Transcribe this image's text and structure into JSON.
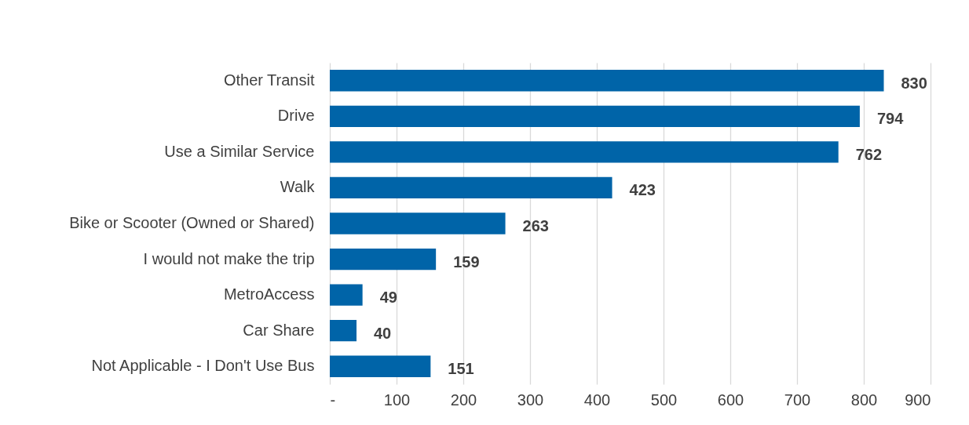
{
  "chart_data": {
    "type": "bar",
    "orientation": "horizontal",
    "categories": [
      "Other Transit",
      "Drive",
      "Use a Similar Service",
      "Walk",
      "Bike or Scooter (Owned or Shared)",
      "I would not make the trip",
      "MetroAccess",
      "Car Share",
      "Not Applicable - I Don't Use Bus"
    ],
    "values": [
      830,
      794,
      762,
      423,
      263,
      159,
      49,
      40,
      151
    ],
    "color": "#0064a8",
    "xlim": [
      0,
      900
    ],
    "xticks": [
      {
        "value": 0,
        "label": "-"
      },
      100,
      200,
      300,
      400,
      500,
      600,
      700,
      800,
      900
    ],
    "grid": "x",
    "data_labels": true
  }
}
